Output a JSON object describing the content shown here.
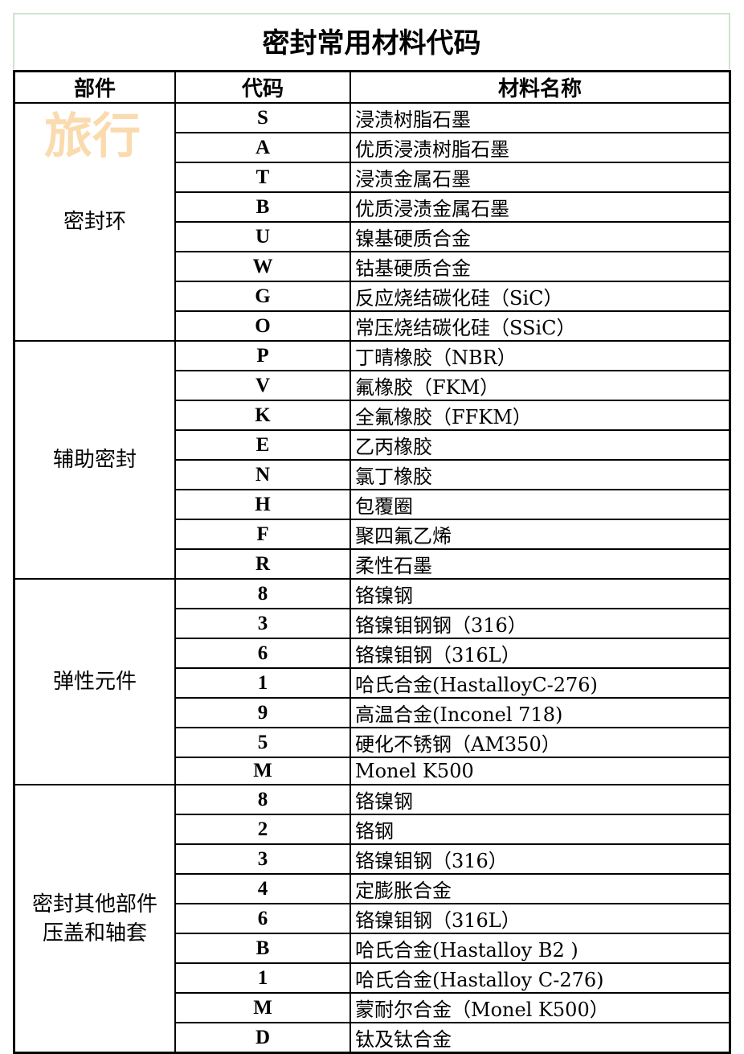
{
  "title": "密封常用材料代码",
  "headers": [
    "部件",
    "代码",
    "材料名称"
  ],
  "watermark": "旅行",
  "groups": [
    {
      "part": "密封环",
      "rows": [
        [
          "S",
          "浸渍树脂石墨"
        ],
        [
          "A",
          "优质浸渍树脂石墨"
        ],
        [
          "T",
          "浸渍金属石墨"
        ],
        [
          "B",
          "优质浸渍金属石墨"
        ],
        [
          "U",
          "镍基硬质合金"
        ],
        [
          "W",
          "钴基硬质合金"
        ],
        [
          "G",
          "反应烧结碳化硅（SiC）"
        ],
        [
          "O",
          "常压烧结碳化硅（SSiC）"
        ]
      ]
    },
    {
      "part": "辅助密封",
      "rows": [
        [
          "P",
          "丁晴橡胶（NBR）"
        ],
        [
          "V",
          "氟橡胶（FKM）"
        ],
        [
          "K",
          "全氟橡胶（FFKM）"
        ],
        [
          "E",
          "乙丙橡胶"
        ],
        [
          "N",
          "氯丁橡胶"
        ],
        [
          "H",
          "包覆圈"
        ],
        [
          "F",
          "聚四氟乙烯"
        ],
        [
          "R",
          "柔性石墨"
        ]
      ]
    },
    {
      "part": "弹性元件",
      "rows": [
        [
          "8",
          "铬镍钢"
        ],
        [
          "3",
          "铬镍钼钢钢（316）"
        ],
        [
          "6",
          "铬镍钼钢（316L）"
        ],
        [
          "1",
          "哈氏合金(HastalloyC-276)"
        ],
        [
          "9",
          "高温合金(Inconel 718)"
        ],
        [
          "5",
          "硬化不锈钢（AM350）"
        ],
        [
          "M",
          "Monel K500"
        ]
      ]
    },
    {
      "part": "密封其他部件\n压盖和轴套",
      "rows": [
        [
          "8",
          "铬镍钢"
        ],
        [
          "2",
          "铬钢"
        ],
        [
          "3",
          "铬镍钼钢（316）"
        ],
        [
          "4",
          "定膨胀合金"
        ],
        [
          "6",
          "铬镍钼钢（316L）"
        ],
        [
          "B",
          "哈氏合金(Hastalloy B2 )"
        ],
        [
          "1",
          "哈氏合金(Hastalloy C-276)"
        ],
        [
          "M",
          "蒙耐尔合金（Monel K500）"
        ],
        [
          "D",
          "钛及钛合金"
        ]
      ]
    }
  ]
}
